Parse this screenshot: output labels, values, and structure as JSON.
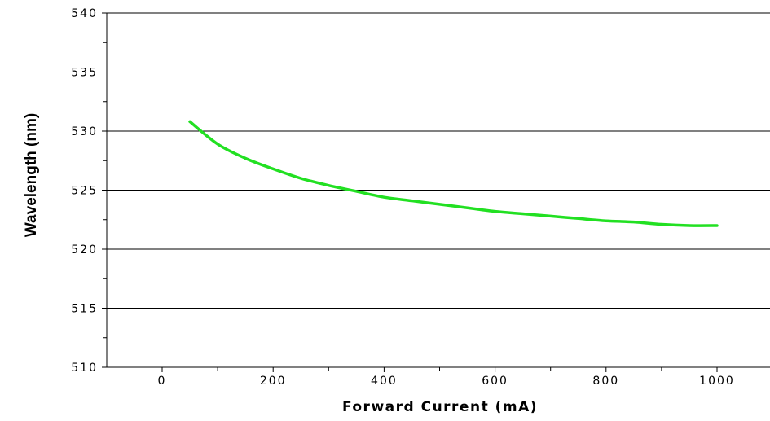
{
  "chart_data": {
    "type": "line",
    "title": "",
    "xlabel": "Forward Current (mA)",
    "ylabel": "Wavelength (nm)",
    "xlim": [
      -100,
      1000
    ],
    "ylim": [
      510,
      540
    ],
    "xticks": [
      0,
      200,
      400,
      600,
      800,
      1000
    ],
    "xtick_labels": [
      "0",
      "200",
      "400",
      "600",
      "800",
      "1000"
    ],
    "yticks": [
      510,
      515,
      520,
      525,
      530,
      535,
      540
    ],
    "ytick_labels": [
      "510",
      "515",
      "520",
      "525",
      "530",
      "535",
      "540"
    ],
    "grid": "horizontal",
    "series": [
      {
        "color": "#22e022",
        "x": [
          50,
          100,
          150,
          200,
          250,
          300,
          350,
          400,
          450,
          500,
          550,
          600,
          650,
          700,
          750,
          800,
          850,
          900,
          950,
          1000
        ],
        "y": [
          530.8,
          528.9,
          527.7,
          526.8,
          526.0,
          525.4,
          524.9,
          524.4,
          524.1,
          523.8,
          523.5,
          523.2,
          523.0,
          522.8,
          522.6,
          522.4,
          522.3,
          522.1,
          522.0,
          522.0
        ]
      }
    ]
  }
}
